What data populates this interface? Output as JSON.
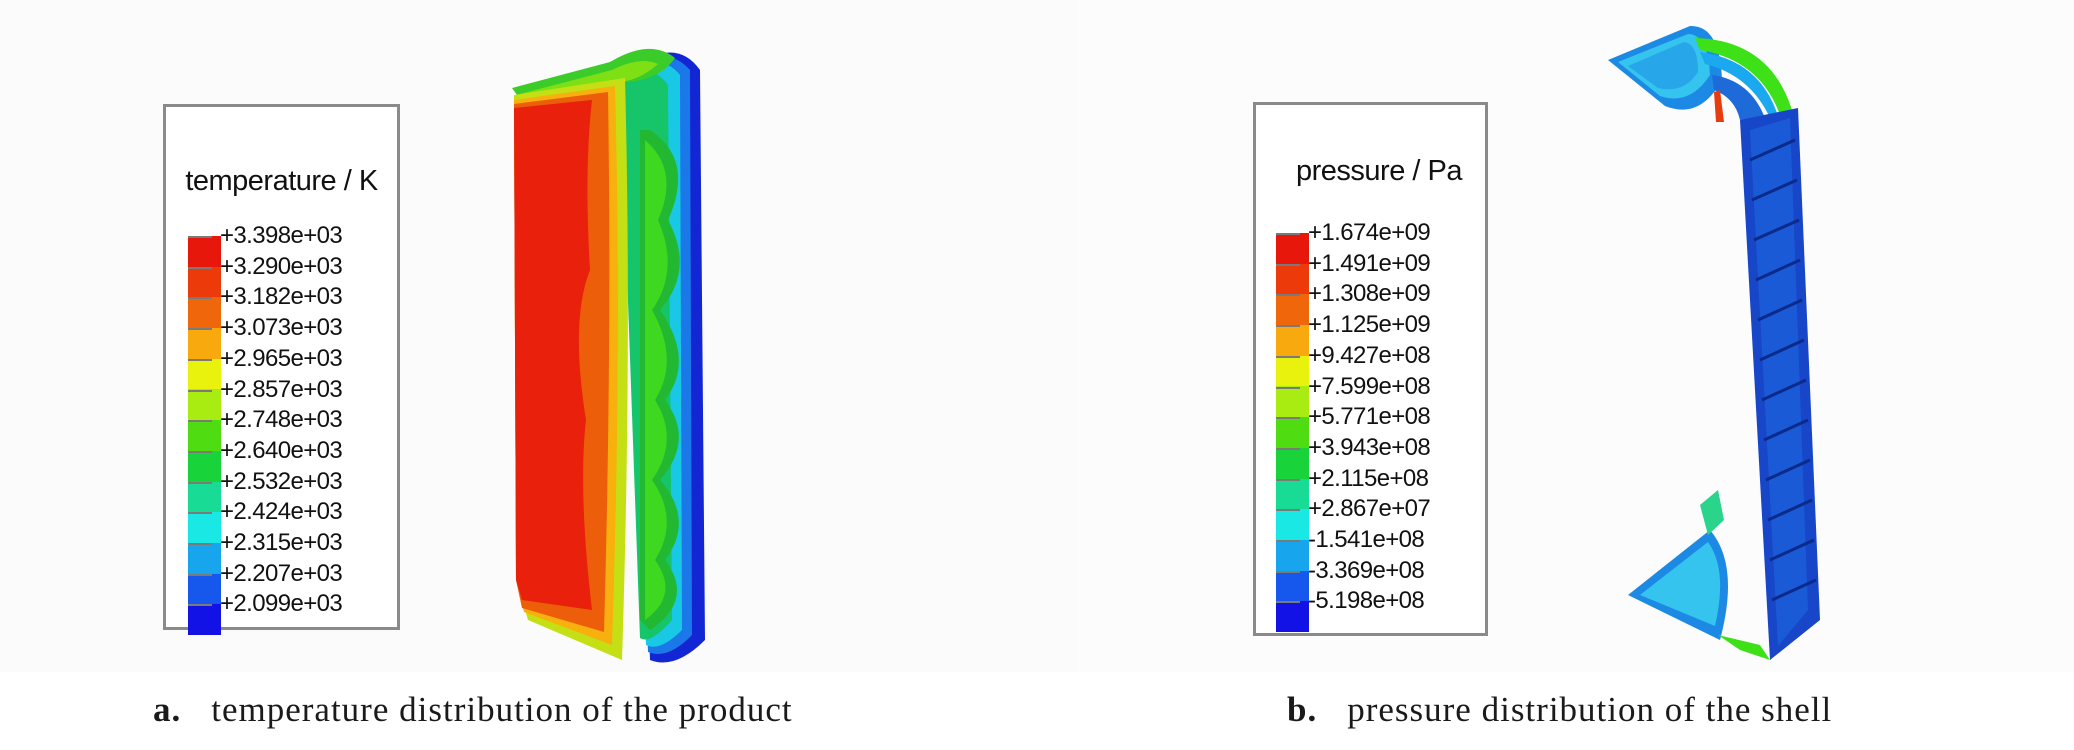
{
  "panels": [
    {
      "id": "a",
      "legend": {
        "title": "temperature / K",
        "labels": [
          "+3.398e+03",
          "+3.290e+03",
          "+3.182e+03",
          "+3.073e+03",
          "+2.965e+03",
          "+2.857e+03",
          "+2.748e+03",
          "+2.640e+03",
          "+2.532e+03",
          "+2.424e+03",
          "+2.315e+03",
          "+2.207e+03",
          "+2.099e+03"
        ]
      },
      "caption": {
        "letter": "a.",
        "text": "temperature distribution of the product"
      }
    },
    {
      "id": "b",
      "legend": {
        "title": "pressure / Pa",
        "labels": [
          "+1.674e+09",
          "+1.491e+09",
          "+1.308e+09",
          "+1.125e+09",
          "+9.427e+08",
          "+7.599e+08",
          "+5.771e+08",
          "+3.943e+08",
          "+2.115e+08",
          "+2.867e+07",
          "-1.541e+08",
          "-3.369e+08",
          "-5.198e+08"
        ]
      },
      "caption": {
        "letter": "b.",
        "text": "pressure distribution of the shell"
      }
    }
  ],
  "colorbar_colors": [
    "#e8170c",
    "#ec3a0a",
    "#f0660a",
    "#f7a90d",
    "#e8f20c",
    "#a8ec12",
    "#4fdc10",
    "#18d43a",
    "#18dc96",
    "#1ae8e4",
    "#17a6ee",
    "#1657ee",
    "#1212e6"
  ]
}
